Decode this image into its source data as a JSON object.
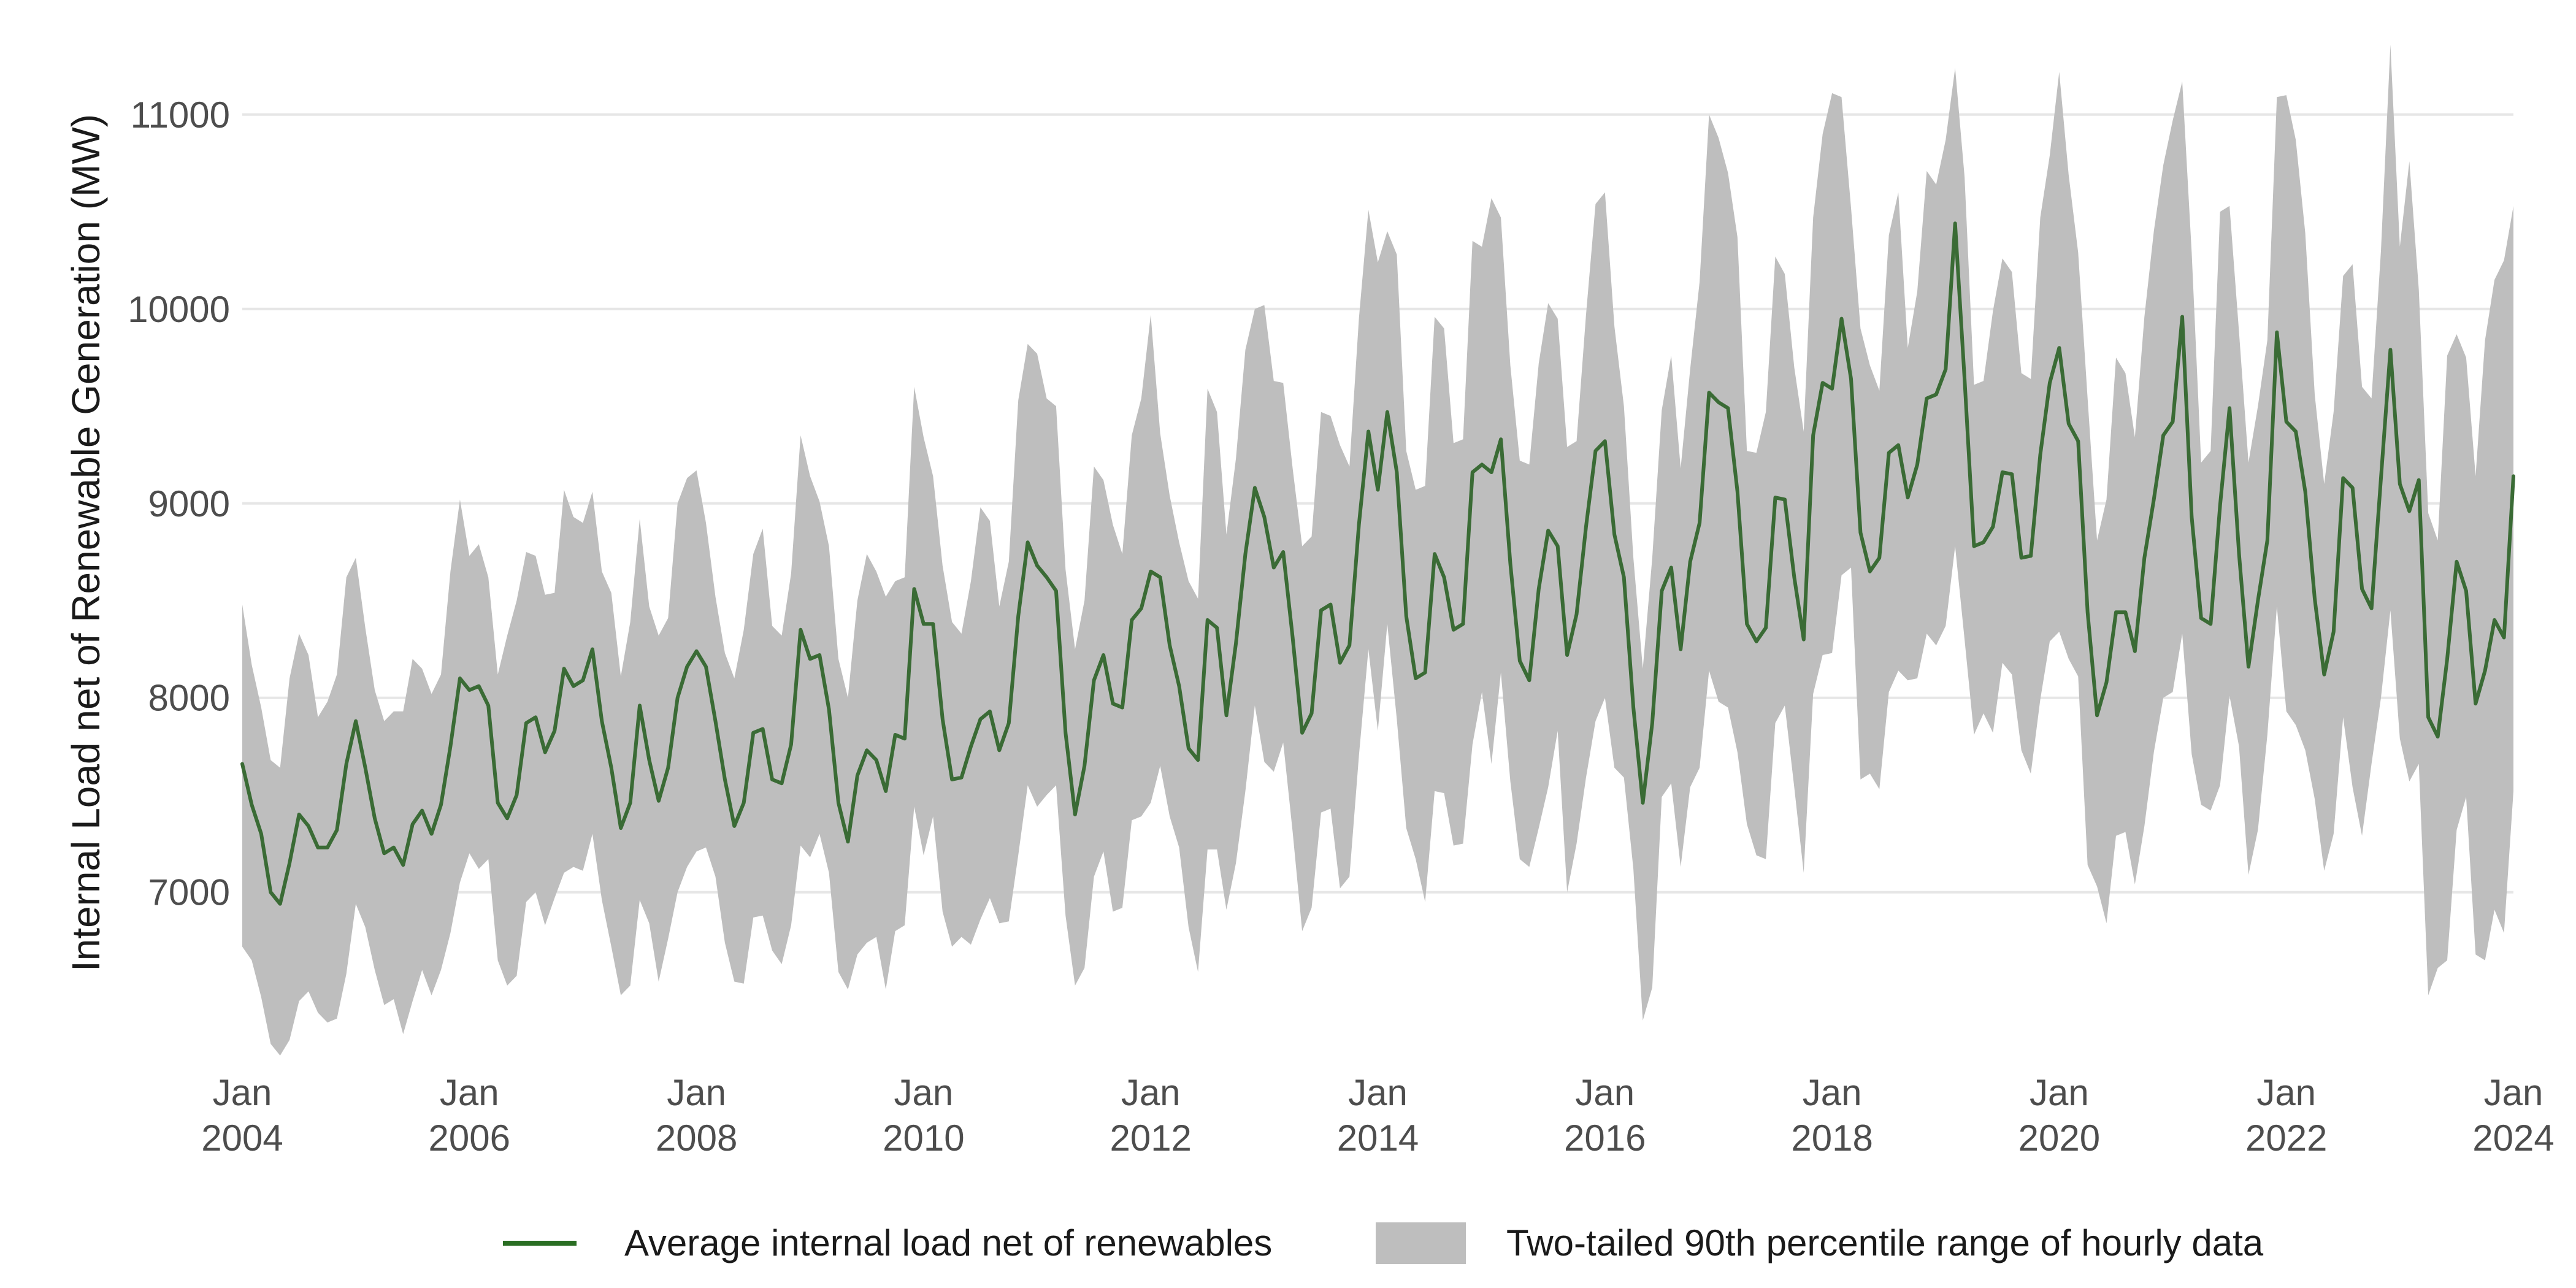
{
  "chart_data": {
    "type": "area",
    "title": "",
    "xlabel": "",
    "ylabel": "Internal Load net of Renewable Generation (MW)",
    "x_start": "2004-01",
    "x_frequency": "monthly",
    "xlim": [
      "2004-01",
      "2024-01"
    ],
    "ylim": [
      6100,
      11400
    ],
    "x_ticks": [
      {
        "month": "Jan",
        "year": "2004",
        "value": "2004-01"
      },
      {
        "month": "Jan",
        "year": "2006",
        "value": "2006-01"
      },
      {
        "month": "Jan",
        "year": "2008",
        "value": "2008-01"
      },
      {
        "month": "Jan",
        "year": "2010",
        "value": "2010-01"
      },
      {
        "month": "Jan",
        "year": "2012",
        "value": "2012-01"
      },
      {
        "month": "Jan",
        "year": "2014",
        "value": "2014-01"
      },
      {
        "month": "Jan",
        "year": "2016",
        "value": "2016-01"
      },
      {
        "month": "Jan",
        "year": "2018",
        "value": "2018-01"
      },
      {
        "month": "Jan",
        "year": "2020",
        "value": "2020-01"
      },
      {
        "month": "Jan",
        "year": "2022",
        "value": "2022-01"
      },
      {
        "month": "Jan",
        "year": "2024",
        "value": "2024-01"
      }
    ],
    "y_ticks": [
      7000,
      8000,
      9000,
      10000,
      11000
    ],
    "grid": true,
    "legend_position": "bottom",
    "colors": {
      "line": "#3a6b35",
      "band": "#bebebe",
      "legend_line": "#2a6e23"
    },
    "series": [
      {
        "name": "Average internal load net of renewables",
        "kind": "line",
        "values": [
          7660,
          7450,
          7300,
          7000,
          6940,
          7150,
          7400,
          7340,
          7230,
          7230,
          7320,
          7660,
          7880,
          7640,
          7380,
          7200,
          7230,
          7140,
          7350,
          7420,
          7300,
          7450,
          7750,
          8100,
          8040,
          8060,
          7960,
          7460,
          7380,
          7500,
          7870,
          7900,
          7720,
          7830,
          8150,
          8060,
          8090,
          8250,
          7880,
          7640,
          7330,
          7460,
          7960,
          7680,
          7470,
          7640,
          8000,
          8160,
          8240,
          8160,
          7880,
          7580,
          7340,
          7460,
          7820,
          7840,
          7580,
          7560,
          7760,
          8350,
          8200,
          8220,
          7940,
          7460,
          7260,
          7600,
          7730,
          7680,
          7520,
          7810,
          7790,
          8560,
          8380,
          8380,
          7890,
          7580,
          7590,
          7750,
          7890,
          7930,
          7730,
          7870,
          8420,
          8800,
          8680,
          8620,
          8550,
          7820,
          7400,
          7650,
          8090,
          8220,
          7970,
          7950,
          8400,
          8460,
          8650,
          8620,
          8270,
          8060,
          7740,
          7680,
          8400,
          8360,
          7910,
          8280,
          8740,
          9080,
          8930,
          8670,
          8750,
          8310,
          7820,
          7920,
          8450,
          8480,
          8180,
          8270,
          8890,
          9370,
          9070,
          9470,
          9160,
          8420,
          8100,
          8130,
          8740,
          8620,
          8350,
          8380,
          9160,
          9200,
          9160,
          9330,
          8690,
          8190,
          8090,
          8560,
          8860,
          8780,
          8220,
          8430,
          8880,
          9270,
          9320,
          8840,
          8620,
          7950,
          7460,
          7870,
          8550,
          8670,
          8250,
          8700,
          8900,
          9570,
          9520,
          9490,
          9060,
          8380,
          8290,
          8360,
          9030,
          9020,
          8620,
          8300,
          9350,
          9620,
          9590,
          9950,
          9640,
          8850,
          8650,
          8720,
          9260,
          9300,
          9030,
          9200,
          9540,
          9560,
          9690,
          10440,
          9640,
          8780,
          8800,
          8880,
          9160,
          9150,
          8720,
          8730,
          9250,
          9620,
          9800,
          9410,
          9320,
          8440,
          7910,
          8080,
          8440,
          8440,
          8240,
          8720,
          9020,
          9350,
          9420,
          9960,
          8930,
          8410,
          8380,
          8990,
          9490,
          8740,
          8160,
          8500,
          8810,
          9880,
          9420,
          9370,
          9060,
          8510,
          8120,
          8340,
          9130,
          9080,
          8560,
          8460,
          9130,
          9790,
          9100,
          8960,
          9120,
          7900,
          7800,
          8200,
          8700,
          8550,
          7970,
          8140,
          8400,
          8310,
          9140
        ]
      },
      {
        "name": "Two-tailed 90th percentile range of hourly data",
        "kind": "band",
        "upper": [
          8480,
          8170,
          7950,
          7680,
          7640,
          8100,
          8330,
          8220,
          7900,
          7980,
          8120,
          8620,
          8720,
          8360,
          8040,
          7880,
          7930,
          7930,
          8200,
          8150,
          8020,
          8120,
          8650,
          9020,
          8730,
          8790,
          8620,
          8120,
          8320,
          8500,
          8750,
          8730,
          8530,
          8540,
          9070,
          8930,
          8900,
          9060,
          8650,
          8540,
          8110,
          8390,
          8920,
          8470,
          8320,
          8410,
          9000,
          9130,
          9170,
          8900,
          8520,
          8230,
          8100,
          8350,
          8740,
          8870,
          8370,
          8320,
          8640,
          9350,
          9140,
          9010,
          8780,
          8200,
          8000,
          8500,
          8740,
          8650,
          8520,
          8600,
          8620,
          9600,
          9340,
          9140,
          8680,
          8390,
          8330,
          8600,
          8980,
          8910,
          8470,
          8700,
          9530,
          9820,
          9770,
          9540,
          9500,
          8660,
          8250,
          8500,
          9190,
          9120,
          8890,
          8740,
          9350,
          9540,
          9970,
          9360,
          9040,
          8800,
          8600,
          8510,
          9590,
          9470,
          8840,
          9230,
          9790,
          10000,
          10020,
          9630,
          9620,
          9180,
          8780,
          8830,
          9470,
          9450,
          9300,
          9190,
          9950,
          10510,
          10240,
          10400,
          10280,
          9270,
          9070,
          9090,
          9960,
          9900,
          9310,
          9330,
          10350,
          10320,
          10570,
          10470,
          9710,
          9220,
          9200,
          9720,
          10030,
          9950,
          9290,
          9320,
          9970,
          10540,
          10600,
          9910,
          9500,
          8720,
          8150,
          8720,
          9480,
          9760,
          9180,
          9690,
          10140,
          11000,
          10880,
          10700,
          10370,
          9270,
          9260,
          9470,
          10270,
          10180,
          9700,
          9370,
          10470,
          10900,
          11110,
          11090,
          10520,
          9900,
          9710,
          9580,
          10380,
          10600,
          9800,
          10090,
          10710,
          10640,
          10870,
          11240,
          10680,
          9610,
          9630,
          9990,
          10260,
          10190,
          9670,
          9640,
          10470,
          10790,
          11220,
          10690,
          10290,
          9540,
          8810,
          9020,
          9750,
          9670,
          9340,
          9960,
          10400,
          10740,
          10970,
          11170,
          10290,
          9210,
          9270,
          10500,
          10530,
          9880,
          9210,
          9500,
          9840,
          11090,
          11100,
          10870,
          10390,
          9560,
          9100,
          9470,
          10170,
          10230,
          9600,
          9540,
          10300,
          11360,
          10320,
          10760,
          10100,
          8950,
          8810,
          9760,
          9870,
          9750,
          9140,
          9840,
          10150,
          10250,
          10530
        ],
        "lower": [
          6720,
          6650,
          6460,
          6220,
          6160,
          6240,
          6440,
          6490,
          6380,
          6330,
          6350,
          6580,
          6940,
          6820,
          6600,
          6420,
          6450,
          6270,
          6440,
          6600,
          6470,
          6600,
          6790,
          7050,
          7200,
          7120,
          7170,
          6650,
          6520,
          6570,
          6950,
          7000,
          6830,
          6970,
          7100,
          7130,
          7110,
          7300,
          6960,
          6720,
          6470,
          6520,
          6960,
          6840,
          6540,
          6760,
          7000,
          7130,
          7210,
          7230,
          7080,
          6740,
          6540,
          6530,
          6870,
          6880,
          6700,
          6630,
          6830,
          7240,
          7180,
          7300,
          7100,
          6590,
          6500,
          6680,
          6740,
          6770,
          6500,
          6800,
          6830,
          7440,
          7190,
          7390,
          6900,
          6720,
          6770,
          6730,
          6860,
          6970,
          6840,
          6850,
          7190,
          7550,
          7440,
          7500,
          7550,
          6880,
          6520,
          6610,
          7080,
          7210,
          6900,
          6920,
          7370,
          7390,
          7460,
          7650,
          7390,
          7230,
          6820,
          6590,
          7220,
          7220,
          6910,
          7150,
          7520,
          7960,
          7670,
          7620,
          7770,
          7310,
          6800,
          6920,
          7410,
          7430,
          7020,
          7080,
          7700,
          8250,
          7830,
          8380,
          7890,
          7330,
          7170,
          6950,
          7520,
          7510,
          7240,
          7250,
          7760,
          8030,
          7660,
          8130,
          7570,
          7170,
          7130,
          7330,
          7540,
          7830,
          7000,
          7250,
          7590,
          7880,
          8000,
          7640,
          7590,
          7120,
          6340,
          6510,
          7490,
          7560,
          7130,
          7540,
          7640,
          8140,
          7980,
          7950,
          7720,
          7350,
          7190,
          7170,
          7870,
          7960,
          7540,
          7100,
          8020,
          8220,
          8230,
          8630,
          8670,
          7580,
          7610,
          7530,
          8030,
          8140,
          8090,
          8100,
          8330,
          8270,
          8370,
          8780,
          8300,
          7810,
          7920,
          7820,
          8180,
          8120,
          7730,
          7610,
          7990,
          8290,
          8340,
          8200,
          8110,
          7140,
          7030,
          6840,
          7290,
          7310,
          7040,
          7340,
          7720,
          8000,
          8030,
          8330,
          7710,
          7450,
          7420,
          7550,
          8010,
          7750,
          7090,
          7320,
          7810,
          8470,
          7930,
          7860,
          7730,
          7480,
          7110,
          7300,
          7900,
          7540,
          7290,
          7660,
          8000,
          8450,
          7790,
          7570,
          7660,
          6470,
          6610,
          6650,
          7320,
          7490,
          6680,
          6650,
          6910,
          6790,
          7520
        ]
      }
    ],
    "legend": [
      {
        "kind": "line",
        "label": "Average internal load net of renewables"
      },
      {
        "kind": "band",
        "label": "Two-tailed 90th percentile range of hourly data"
      }
    ]
  }
}
